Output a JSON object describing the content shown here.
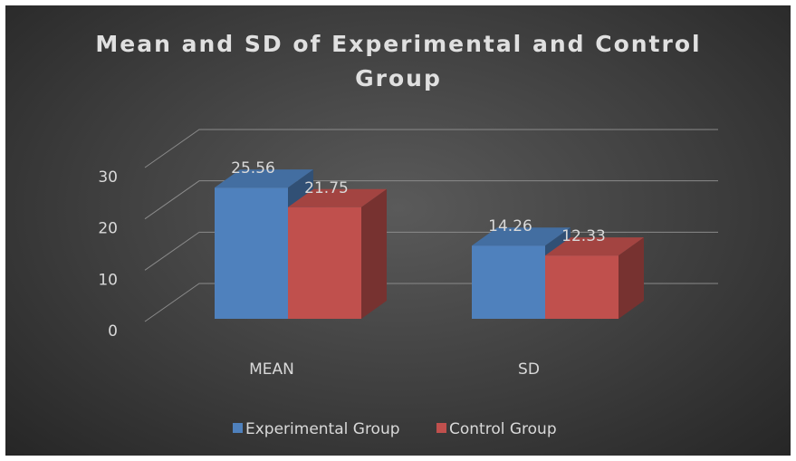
{
  "chart_data": {
    "type": "bar3d",
    "title": "Mean and SD of Experimental and Control Group",
    "categories": [
      "MEAN",
      "SD"
    ],
    "series": [
      {
        "name": "Experimental Group",
        "color": "#4f81bd",
        "values": [
          25.56,
          14.26
        ]
      },
      {
        "name": "Control Group",
        "color": "#c0504d",
        "values": [
          21.75,
          12.33
        ]
      }
    ],
    "ylim": [
      0,
      30
    ],
    "yticks": [
      0,
      10,
      20,
      30
    ],
    "grid": true,
    "legend": "bottom"
  }
}
